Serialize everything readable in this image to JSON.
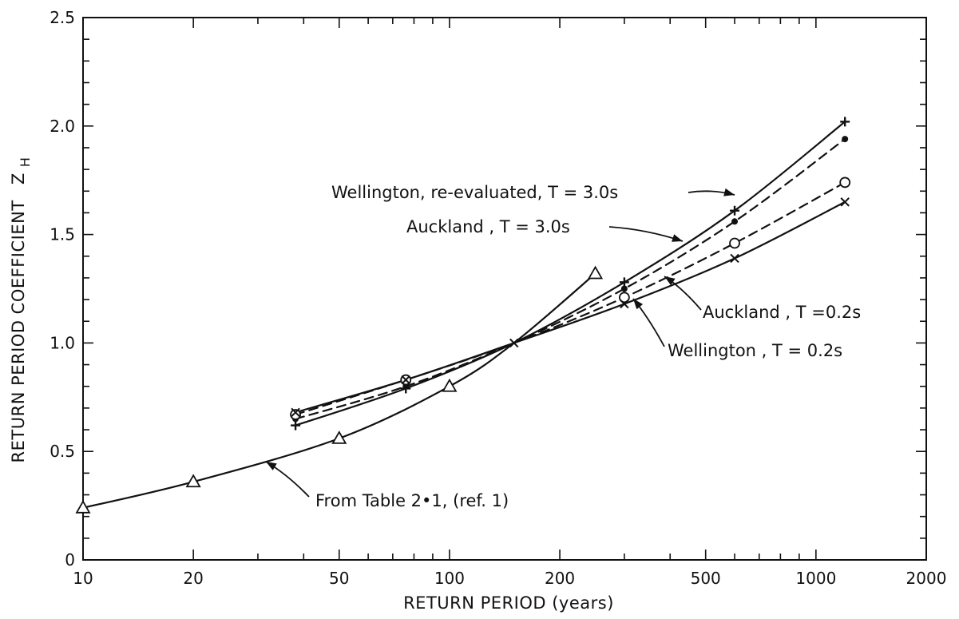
{
  "chart_data": {
    "type": "line",
    "xlabel": "RETURN PERIOD (years)",
    "ylabel": "RETURN PERIOD COEFFICIENT",
    "ylabel_symbol": "Z",
    "ylabel_subscript": "H",
    "x_scale": "log",
    "xlim": [
      10,
      2000
    ],
    "ylim": [
      0,
      2.5
    ],
    "x_ticks": [
      10,
      20,
      50,
      100,
      200,
      500,
      1000,
      2000
    ],
    "x_tick_labels": [
      "10",
      "20",
      "50",
      "100",
      "200",
      "500",
      "1000",
      "2000"
    ],
    "y_ticks": [
      0,
      0.5,
      1.0,
      1.5,
      2.0,
      2.5
    ],
    "y_tick_labels": [
      "0",
      "0.5",
      "1.0",
      "1.5",
      "2.0",
      "2.5"
    ],
    "grid": false,
    "series": [
      {
        "name": "Wellington, re-evaluated, T = 3.0s",
        "line_style": "solid",
        "marker": "plus",
        "x": [
          38,
          76,
          150,
          300,
          600,
          1200
        ],
        "y": [
          0.62,
          0.79,
          1.0,
          1.28,
          1.61,
          2.02
        ]
      },
      {
        "name": "Auckland, T = 3.0s",
        "line_style": "dashed",
        "marker": "dot",
        "x": [
          38,
          76,
          150,
          300,
          600,
          1200
        ],
        "y": [
          0.65,
          0.8,
          1.0,
          1.25,
          1.56,
          1.94
        ]
      },
      {
        "name": "Auckland, T=0.2s",
        "line_style": "dashed",
        "marker": "circle",
        "x": [
          38,
          76,
          150,
          300,
          600,
          1200
        ],
        "y": [
          0.67,
          0.83,
          1.0,
          1.21,
          1.46,
          1.74
        ]
      },
      {
        "name": "Wellington, T = 0.2s",
        "line_style": "solid",
        "marker": "x",
        "x": [
          38,
          76,
          150,
          300,
          600,
          1200
        ],
        "y": [
          0.68,
          0.83,
          1.0,
          1.18,
          1.39,
          1.65
        ]
      },
      {
        "name": "From Table 2•1, (ref. 1)",
        "line_style": "solid",
        "marker": "triangle",
        "x": [
          10,
          20,
          50,
          100,
          150,
          250
        ],
        "y": [
          0.24,
          0.36,
          0.56,
          0.8,
          1.0,
          1.32
        ]
      }
    ],
    "annotations": [
      {
        "text": "Wellington, re-evaluated, T = 3.0s"
      },
      {
        "text": "Auckland , T = 3.0s"
      },
      {
        "text": "Auckland , T =0.2s"
      },
      {
        "text": "Wellington , T = 0.2s"
      },
      {
        "text": "From Table 2•1, (ref. 1)"
      }
    ]
  }
}
